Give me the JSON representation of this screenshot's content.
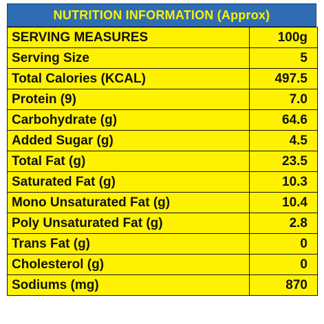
{
  "header": {
    "title": "NUTRITION INFORMATION (Approx)"
  },
  "table": {
    "rows": [
      [
        "SERVING MEASURES",
        "100g"
      ],
      [
        "Serving Size",
        "5"
      ],
      [
        "Total Calories (KCAL)",
        "497.5"
      ],
      [
        "Protein (9)",
        "7.0"
      ],
      [
        "Carbohydrate (g)",
        "64.6"
      ],
      [
        "Added Sugar (g)",
        "4.5"
      ],
      [
        "Total Fat (g)",
        "23.5"
      ],
      [
        "Saturated Fat (g)",
        "10.3"
      ],
      [
        "Mono Unsaturated Fat (g)",
        "10.4"
      ],
      [
        "Poly Unsaturated Fat (g)",
        "2.8"
      ],
      [
        "Trans Fat (g)",
        "0"
      ],
      [
        "Cholesterol (g)",
        "0"
      ],
      [
        "Sodiums (mg)",
        "870"
      ]
    ]
  }
}
